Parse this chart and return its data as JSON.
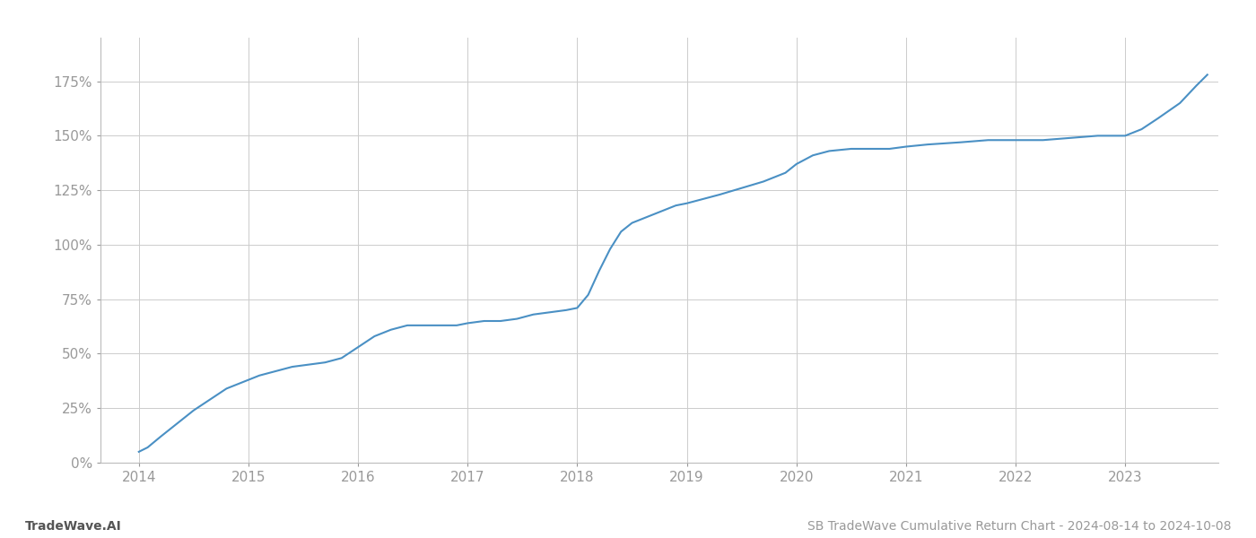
{
  "title": "SB TradeWave Cumulative Return Chart - 2024-08-14 to 2024-10-08",
  "watermark": "TradeWave.AI",
  "line_color": "#4a90c4",
  "background_color": "#ffffff",
  "grid_color": "#cccccc",
  "tick_color": "#999999",
  "x_values": [
    2014.0,
    2014.08,
    2014.2,
    2014.35,
    2014.5,
    2014.65,
    2014.8,
    2014.95,
    2015.1,
    2015.25,
    2015.4,
    2015.55,
    2015.7,
    2015.85,
    2016.0,
    2016.15,
    2016.3,
    2016.45,
    2016.6,
    2016.75,
    2016.9,
    2017.0,
    2017.15,
    2017.3,
    2017.45,
    2017.6,
    2017.75,
    2017.9,
    2018.0,
    2018.1,
    2018.2,
    2018.3,
    2018.4,
    2018.5,
    2018.6,
    2018.7,
    2018.8,
    2018.9,
    2019.0,
    2019.15,
    2019.3,
    2019.5,
    2019.7,
    2019.9,
    2020.0,
    2020.15,
    2020.3,
    2020.5,
    2020.7,
    2020.85,
    2021.0,
    2021.2,
    2021.5,
    2021.75,
    2022.0,
    2022.25,
    2022.5,
    2022.75,
    2023.0,
    2023.15,
    2023.3,
    2023.5,
    2023.65,
    2023.75
  ],
  "y_values": [
    5,
    7,
    12,
    18,
    24,
    29,
    34,
    37,
    40,
    42,
    44,
    45,
    46,
    48,
    53,
    58,
    61,
    63,
    63,
    63,
    63,
    64,
    65,
    65,
    66,
    68,
    69,
    70,
    71,
    77,
    88,
    98,
    106,
    110,
    112,
    114,
    116,
    118,
    119,
    121,
    123,
    126,
    129,
    133,
    137,
    141,
    143,
    144,
    144,
    144,
    145,
    146,
    147,
    148,
    148,
    148,
    149,
    150,
    150,
    153,
    158,
    165,
    173,
    178
  ],
  "xlim": [
    2013.65,
    2023.85
  ],
  "ylim": [
    0,
    195
  ],
  "yticks": [
    0,
    25,
    50,
    75,
    100,
    125,
    150,
    175
  ],
  "xticks": [
    2014,
    2015,
    2016,
    2017,
    2018,
    2019,
    2020,
    2021,
    2022,
    2023
  ],
  "line_width": 1.5,
  "figsize": [
    14.0,
    6.0
  ],
  "dpi": 100
}
